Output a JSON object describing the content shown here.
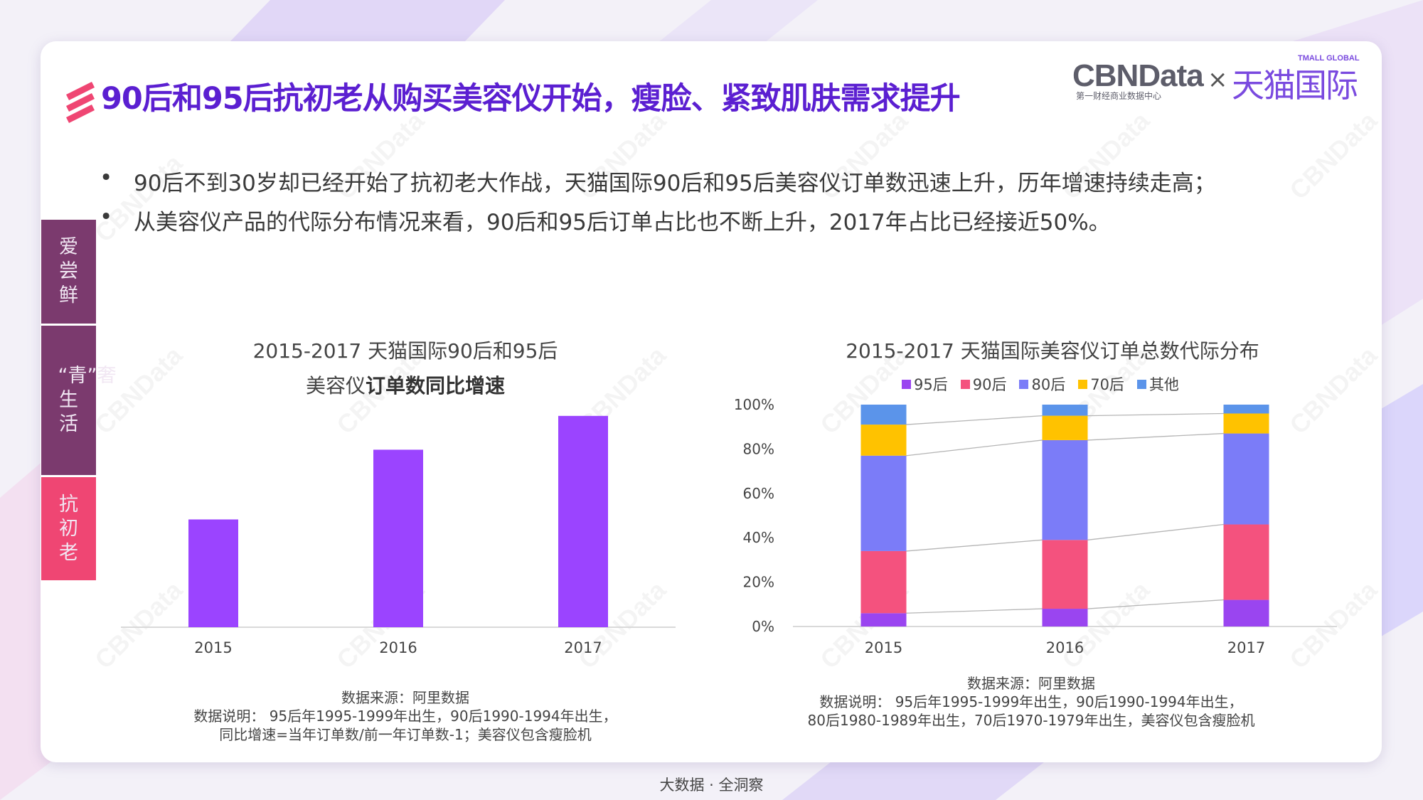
{
  "colors": {
    "title": "#5b1fd1",
    "bar_left": "#9b44ff",
    "tab_dark": "#7b3a6e",
    "tab_active": "#ef4673",
    "series_95": "#9a45f0",
    "series_90": "#f4527e",
    "series_80": "#7b7cf8",
    "series_70": "#ffc200",
    "series_other": "#5b94ea"
  },
  "header": {
    "title": "90后和95后抗初老从购买美容仪开始，瘦脸、紧致肌肤需求提升",
    "title_icon": "triple-slash-icon",
    "logo": {
      "cbn": "CBNData",
      "cbn_sub": "第一财经商业数据中心",
      "times": "×",
      "tmall_en": "TMALL GLOBAL",
      "tmall": "天猫国际"
    }
  },
  "bullets": [
    "90后不到30岁却已经开始了抗初老大作战，天猫国际90后和95后美容仪订单数迅速上升，历年增速持续走高；",
    "从美容仪产品的代际分布情况来看，90后和95后订单占比也不断上升，2017年占比已经接近50%。"
  ],
  "bullet_symbol": "•",
  "side_tabs": [
    {
      "label": "爱尝鲜",
      "active": false
    },
    {
      "label": "“青”奢生活",
      "active": false
    },
    {
      "label": "抗初老",
      "active": true
    }
  ],
  "left_note": {
    "source": "数据来源：阿里数据",
    "line1": "数据说明： 95后年1995-1999年出生，90后1990-1994年出生，",
    "line2": "同比增速=当年订单数/前一年订单数-1；美容仪包含瘦脸机"
  },
  "right_note": {
    "source": "数据来源：阿里数据",
    "line1": "数据说明： 95后年1995-1999年出生，90后1990-1994年出生，",
    "line2": "80后1980-1989年出生，70后1970-1979年出生，美容仪包含瘦脸机"
  },
  "footer": "大数据 · 全洞察",
  "chart_data": [
    {
      "type": "bar",
      "title_line1": "2015-2017 天猫国际90后和95后",
      "title_line2_normal": "美容仪",
      "title_line2_bold": "订单数同比增速",
      "categories": [
        "2015",
        "2016",
        "2017"
      ],
      "values": [
        0.51,
        0.84,
        1.0
      ],
      "ylim": [
        0,
        1.05
      ],
      "grid": false,
      "legend": "none"
    },
    {
      "type": "bar",
      "stacked": true,
      "title": "2015-2017 天猫国际美容仪订单总数代际分布",
      "categories": [
        "2015",
        "2016",
        "2017"
      ],
      "y_ticks": [
        "0%",
        "20%",
        "40%",
        "60%",
        "80%",
        "100%"
      ],
      "ylim": [
        0,
        100
      ],
      "legend": "top",
      "grid": false,
      "series": [
        {
          "name": "95后",
          "values": [
            6,
            8,
            12
          ]
        },
        {
          "name": "90后",
          "values": [
            28,
            31,
            34
          ]
        },
        {
          "name": "80后",
          "values": [
            43,
            45,
            41
          ]
        },
        {
          "name": "70后",
          "values": [
            14,
            11,
            9
          ]
        },
        {
          "name": "其他",
          "values": [
            9,
            5,
            4
          ]
        }
      ]
    }
  ]
}
